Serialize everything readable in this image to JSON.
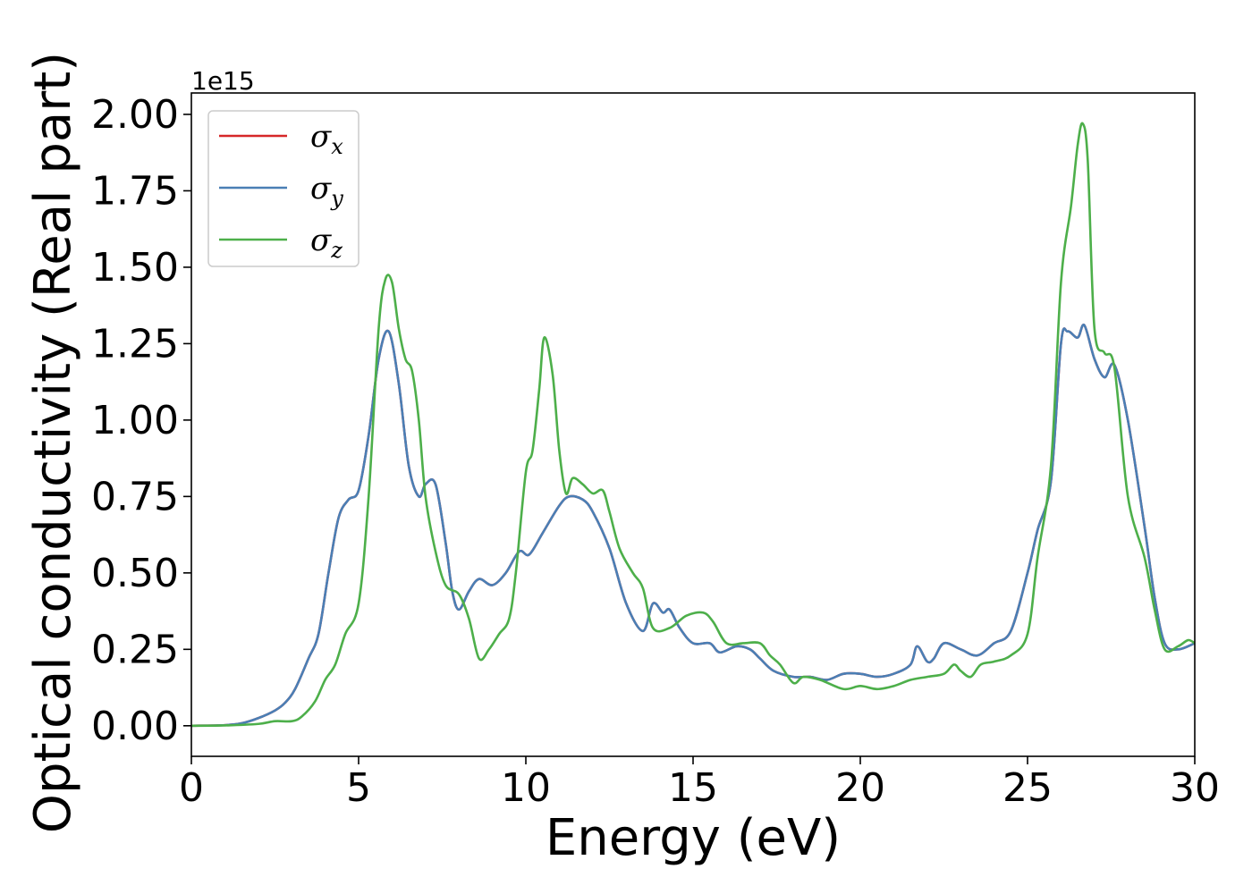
{
  "chart_data": {
    "type": "line",
    "xlabel": "Energy (eV)",
    "ylabel": "Optical conductivity (Real part)",
    "y_offset_label": "1e15",
    "y_scale": 1000000000000000.0,
    "xlim": [
      0,
      30
    ],
    "ylim": [
      -0.1,
      2.07
    ],
    "x_ticks": [
      0,
      5,
      10,
      15,
      20,
      25,
      30
    ],
    "x_tick_labels": [
      "0",
      "5",
      "10",
      "15",
      "20",
      "25",
      "30"
    ],
    "y_ticks": [
      0.0,
      0.25,
      0.5,
      0.75,
      1.0,
      1.25,
      1.5,
      1.75,
      2.0
    ],
    "y_tick_labels": [
      "0.00",
      "0.25",
      "0.50",
      "0.75",
      "1.00",
      "1.25",
      "1.50",
      "1.75",
      "2.00"
    ],
    "grid": false,
    "legend_position": "top-left",
    "series": [
      {
        "name": "σx",
        "symbol": "σ",
        "subscript": "x",
        "color": "#d62728",
        "points": [
          [
            0,
            0
          ],
          [
            1,
            0.002
          ],
          [
            1.5,
            0.008
          ],
          [
            2,
            0.025
          ],
          [
            2.5,
            0.05
          ],
          [
            2.8,
            0.075
          ],
          [
            3.1,
            0.12
          ],
          [
            3.5,
            0.22
          ],
          [
            3.8,
            0.3
          ],
          [
            4.1,
            0.5
          ],
          [
            4.4,
            0.68
          ],
          [
            4.7,
            0.74
          ],
          [
            5.0,
            0.77
          ],
          [
            5.3,
            0.95
          ],
          [
            5.6,
            1.2
          ],
          [
            5.9,
            1.29
          ],
          [
            6.2,
            1.12
          ],
          [
            6.5,
            0.85
          ],
          [
            6.8,
            0.75
          ],
          [
            7.0,
            0.79
          ],
          [
            7.3,
            0.79
          ],
          [
            7.6,
            0.6
          ],
          [
            7.8,
            0.44
          ],
          [
            8.0,
            0.38
          ],
          [
            8.3,
            0.44
          ],
          [
            8.6,
            0.48
          ],
          [
            9.0,
            0.46
          ],
          [
            9.4,
            0.5
          ],
          [
            9.8,
            0.57
          ],
          [
            10.1,
            0.56
          ],
          [
            10.5,
            0.63
          ],
          [
            11.0,
            0.72
          ],
          [
            11.3,
            0.75
          ],
          [
            11.7,
            0.74
          ],
          [
            12.0,
            0.7
          ],
          [
            12.5,
            0.58
          ],
          [
            13.0,
            0.4
          ],
          [
            13.5,
            0.31
          ],
          [
            13.8,
            0.4
          ],
          [
            14.1,
            0.37
          ],
          [
            14.3,
            0.38
          ],
          [
            14.6,
            0.32
          ],
          [
            15.0,
            0.27
          ],
          [
            15.5,
            0.27
          ],
          [
            15.8,
            0.24
          ],
          [
            16.3,
            0.26
          ],
          [
            16.7,
            0.25
          ],
          [
            17.0,
            0.22
          ],
          [
            17.4,
            0.18
          ],
          [
            18.0,
            0.16
          ],
          [
            18.5,
            0.16
          ],
          [
            19.0,
            0.15
          ],
          [
            19.5,
            0.17
          ],
          [
            20.0,
            0.17
          ],
          [
            20.5,
            0.16
          ],
          [
            21.0,
            0.17
          ],
          [
            21.5,
            0.2
          ],
          [
            21.7,
            0.26
          ],
          [
            22.0,
            0.21
          ],
          [
            22.2,
            0.22
          ],
          [
            22.5,
            0.27
          ],
          [
            23.0,
            0.25
          ],
          [
            23.5,
            0.23
          ],
          [
            24.0,
            0.27
          ],
          [
            24.5,
            0.31
          ],
          [
            25.0,
            0.5
          ],
          [
            25.3,
            0.64
          ],
          [
            25.7,
            0.8
          ],
          [
            26.0,
            1.25
          ],
          [
            26.2,
            1.29
          ],
          [
            26.5,
            1.27
          ],
          [
            26.7,
            1.31
          ],
          [
            27.0,
            1.2
          ],
          [
            27.3,
            1.14
          ],
          [
            27.6,
            1.18
          ],
          [
            28.0,
            1.0
          ],
          [
            28.5,
            0.65
          ],
          [
            28.8,
            0.42
          ],
          [
            29.1,
            0.27
          ],
          [
            29.5,
            0.25
          ],
          [
            30.0,
            0.27
          ]
        ]
      },
      {
        "name": "σy",
        "symbol": "σ",
        "subscript": "y",
        "color": "#4a7fb5",
        "points": [
          [
            0,
            0
          ],
          [
            1,
            0.002
          ],
          [
            1.5,
            0.008
          ],
          [
            2,
            0.025
          ],
          [
            2.5,
            0.05
          ],
          [
            2.8,
            0.075
          ],
          [
            3.1,
            0.12
          ],
          [
            3.5,
            0.22
          ],
          [
            3.8,
            0.3
          ],
          [
            4.1,
            0.5
          ],
          [
            4.4,
            0.68
          ],
          [
            4.7,
            0.74
          ],
          [
            5.0,
            0.77
          ],
          [
            5.3,
            0.95
          ],
          [
            5.6,
            1.2
          ],
          [
            5.9,
            1.29
          ],
          [
            6.2,
            1.12
          ],
          [
            6.5,
            0.85
          ],
          [
            6.8,
            0.75
          ],
          [
            7.0,
            0.79
          ],
          [
            7.3,
            0.79
          ],
          [
            7.6,
            0.6
          ],
          [
            7.8,
            0.44
          ],
          [
            8.0,
            0.38
          ],
          [
            8.3,
            0.44
          ],
          [
            8.6,
            0.48
          ],
          [
            9.0,
            0.46
          ],
          [
            9.4,
            0.5
          ],
          [
            9.8,
            0.57
          ],
          [
            10.1,
            0.56
          ],
          [
            10.5,
            0.63
          ],
          [
            11.0,
            0.72
          ],
          [
            11.3,
            0.75
          ],
          [
            11.7,
            0.74
          ],
          [
            12.0,
            0.7
          ],
          [
            12.5,
            0.58
          ],
          [
            13.0,
            0.4
          ],
          [
            13.5,
            0.31
          ],
          [
            13.8,
            0.4
          ],
          [
            14.1,
            0.37
          ],
          [
            14.3,
            0.38
          ],
          [
            14.6,
            0.32
          ],
          [
            15.0,
            0.27
          ],
          [
            15.5,
            0.27
          ],
          [
            15.8,
            0.24
          ],
          [
            16.3,
            0.26
          ],
          [
            16.7,
            0.25
          ],
          [
            17.0,
            0.22
          ],
          [
            17.4,
            0.18
          ],
          [
            18.0,
            0.16
          ],
          [
            18.5,
            0.16
          ],
          [
            19.0,
            0.15
          ],
          [
            19.5,
            0.17
          ],
          [
            20.0,
            0.17
          ],
          [
            20.5,
            0.16
          ],
          [
            21.0,
            0.17
          ],
          [
            21.5,
            0.2
          ],
          [
            21.7,
            0.26
          ],
          [
            22.0,
            0.21
          ],
          [
            22.2,
            0.22
          ],
          [
            22.5,
            0.27
          ],
          [
            23.0,
            0.25
          ],
          [
            23.5,
            0.23
          ],
          [
            24.0,
            0.27
          ],
          [
            24.5,
            0.31
          ],
          [
            25.0,
            0.5
          ],
          [
            25.3,
            0.64
          ],
          [
            25.7,
            0.8
          ],
          [
            26.0,
            1.25
          ],
          [
            26.2,
            1.29
          ],
          [
            26.5,
            1.27
          ],
          [
            26.7,
            1.31
          ],
          [
            27.0,
            1.2
          ],
          [
            27.3,
            1.14
          ],
          [
            27.6,
            1.18
          ],
          [
            28.0,
            1.0
          ],
          [
            28.5,
            0.65
          ],
          [
            28.8,
            0.42
          ],
          [
            29.1,
            0.27
          ],
          [
            29.5,
            0.25
          ],
          [
            30.0,
            0.27
          ]
        ]
      },
      {
        "name": "σz",
        "symbol": "σ",
        "subscript": "z",
        "color": "#4daf4a",
        "points": [
          [
            0,
            0
          ],
          [
            1,
            0.001
          ],
          [
            2,
            0.006
          ],
          [
            2.5,
            0.015
          ],
          [
            3.0,
            0.015
          ],
          [
            3.3,
            0.03
          ],
          [
            3.7,
            0.08
          ],
          [
            4.0,
            0.15
          ],
          [
            4.3,
            0.2
          ],
          [
            4.6,
            0.3
          ],
          [
            5.0,
            0.4
          ],
          [
            5.3,
            0.75
          ],
          [
            5.6,
            1.3
          ],
          [
            5.8,
            1.46
          ],
          [
            6.0,
            1.45
          ],
          [
            6.2,
            1.3
          ],
          [
            6.4,
            1.2
          ],
          [
            6.6,
            1.16
          ],
          [
            6.8,
            1.0
          ],
          [
            7.0,
            0.75
          ],
          [
            7.3,
            0.57
          ],
          [
            7.6,
            0.46
          ],
          [
            8.0,
            0.43
          ],
          [
            8.3,
            0.35
          ],
          [
            8.6,
            0.22
          ],
          [
            8.9,
            0.25
          ],
          [
            9.2,
            0.3
          ],
          [
            9.5,
            0.35
          ],
          [
            9.7,
            0.5
          ],
          [
            10.0,
            0.83
          ],
          [
            10.2,
            0.9
          ],
          [
            10.4,
            1.1
          ],
          [
            10.55,
            1.27
          ],
          [
            10.8,
            1.15
          ],
          [
            11.0,
            0.9
          ],
          [
            11.2,
            0.76
          ],
          [
            11.4,
            0.81
          ],
          [
            11.7,
            0.79
          ],
          [
            12.0,
            0.76
          ],
          [
            12.3,
            0.77
          ],
          [
            12.5,
            0.7
          ],
          [
            12.8,
            0.58
          ],
          [
            13.2,
            0.5
          ],
          [
            13.5,
            0.45
          ],
          [
            13.8,
            0.32
          ],
          [
            14.3,
            0.32
          ],
          [
            14.8,
            0.36
          ],
          [
            15.3,
            0.37
          ],
          [
            15.6,
            0.34
          ],
          [
            16.0,
            0.27
          ],
          [
            16.5,
            0.27
          ],
          [
            17.0,
            0.27
          ],
          [
            17.3,
            0.23
          ],
          [
            17.6,
            0.2
          ],
          [
            18.0,
            0.14
          ],
          [
            18.3,
            0.16
          ],
          [
            18.8,
            0.15
          ],
          [
            19.5,
            0.12
          ],
          [
            20.0,
            0.13
          ],
          [
            20.5,
            0.12
          ],
          [
            21.0,
            0.13
          ],
          [
            21.5,
            0.15
          ],
          [
            22.0,
            0.16
          ],
          [
            22.5,
            0.17
          ],
          [
            22.8,
            0.2
          ],
          [
            23.0,
            0.18
          ],
          [
            23.3,
            0.16
          ],
          [
            23.6,
            0.2
          ],
          [
            24.0,
            0.21
          ],
          [
            24.5,
            0.23
          ],
          [
            25.0,
            0.3
          ],
          [
            25.3,
            0.55
          ],
          [
            25.7,
            0.85
          ],
          [
            26.0,
            1.45
          ],
          [
            26.3,
            1.7
          ],
          [
            26.5,
            1.9
          ],
          [
            26.65,
            1.97
          ],
          [
            26.8,
            1.85
          ],
          [
            27.0,
            1.3
          ],
          [
            27.3,
            1.22
          ],
          [
            27.6,
            1.17
          ],
          [
            28.0,
            0.75
          ],
          [
            28.5,
            0.55
          ],
          [
            28.8,
            0.38
          ],
          [
            29.1,
            0.25
          ],
          [
            29.5,
            0.26
          ],
          [
            29.8,
            0.28
          ],
          [
            30.0,
            0.27
          ]
        ]
      }
    ]
  }
}
